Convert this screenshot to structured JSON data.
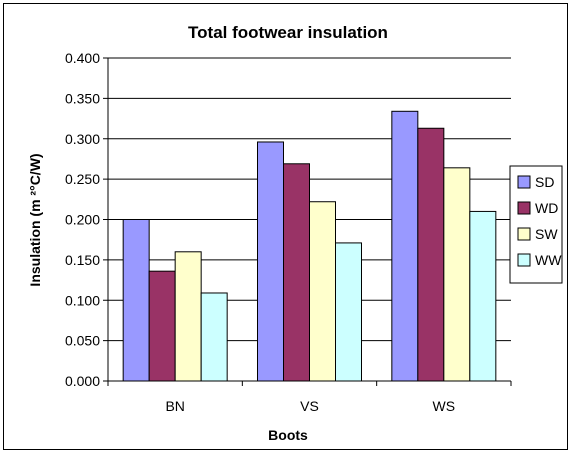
{
  "chart_data": {
    "type": "bar",
    "title": "Total footwear insulation",
    "xlabel": "Boots",
    "ylabel": "Insulation (m ²°C/W)",
    "categories": [
      "BN",
      "VS",
      "WS"
    ],
    "ylim": [
      0,
      0.4
    ],
    "yticks": [
      "0.000",
      "0.050",
      "0.100",
      "0.150",
      "0.200",
      "0.250",
      "0.300",
      "0.350",
      "0.400"
    ],
    "grid": true,
    "legend_position": "right",
    "series": [
      {
        "name": "SD",
        "color": "#9999ff",
        "values": [
          0.2,
          0.296,
          0.334
        ]
      },
      {
        "name": "WD",
        "color": "#993366",
        "values": [
          0.136,
          0.269,
          0.313
        ]
      },
      {
        "name": "SW",
        "color": "#ffffcc",
        "values": [
          0.16,
          0.222,
          0.264
        ]
      },
      {
        "name": "WW",
        "color": "#ccffff",
        "values": [
          0.109,
          0.171,
          0.21
        ]
      }
    ]
  }
}
